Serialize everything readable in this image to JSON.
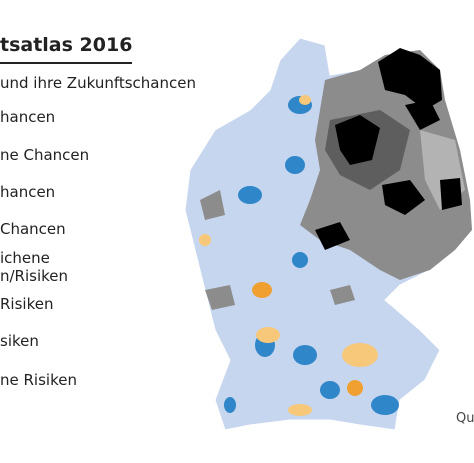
{
  "header": {
    "title": "tsatlas 2016",
    "subtitle": "und ihre Zukunftschancen"
  },
  "legend": {
    "items": [
      [
        "hancen"
      ],
      [
        "ne Chancen"
      ],
      [
        "hancen"
      ],
      [
        "Chancen"
      ],
      [
        "ichene",
        "n/Risiken"
      ],
      [
        "Risiken"
      ],
      [
        "siken"
      ],
      [
        "ne Risiken"
      ]
    ]
  },
  "source": "Qu"
}
